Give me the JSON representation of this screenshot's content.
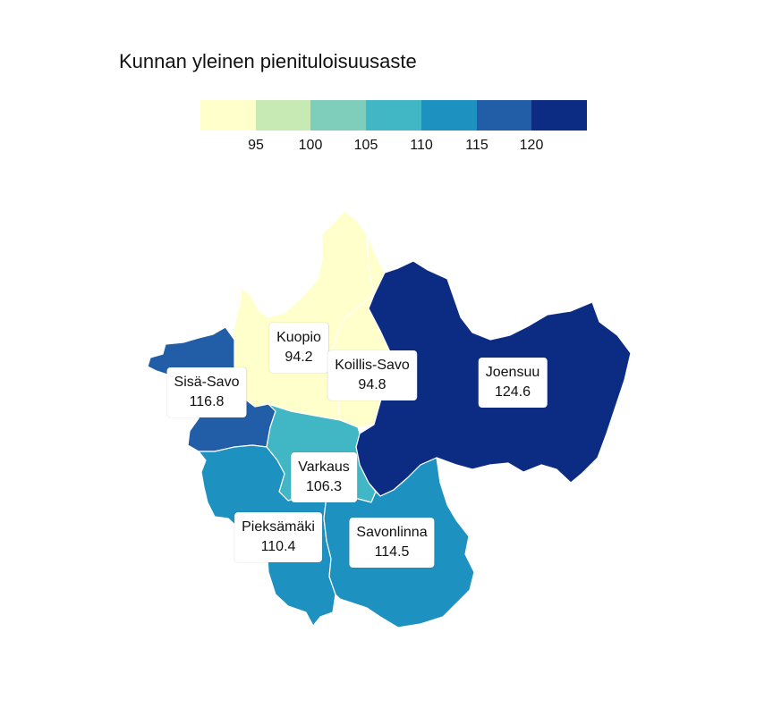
{
  "title": "Kunnan yleinen pienituloisuusaste",
  "legend": {
    "colors": [
      "#ffffcc",
      "#c7e9b4",
      "#7fcdbb",
      "#41b6c4",
      "#1d91c0",
      "#225ea8",
      "#0c2c84"
    ],
    "ticks": [
      "95",
      "100",
      "105",
      "110",
      "115",
      "120"
    ]
  },
  "regions": [
    {
      "name": "Kuopio",
      "value": "94.2",
      "color": "#ffffcc"
    },
    {
      "name": "Koillis-Savo",
      "value": "94.8",
      "color": "#ffffcc"
    },
    {
      "name": "Joensuu",
      "value": "124.6",
      "color": "#0c2c84"
    },
    {
      "name": "Sisä-Savo",
      "value": "116.8",
      "color": "#225ea8"
    },
    {
      "name": "Varkaus",
      "value": "106.3",
      "color": "#41b6c4"
    },
    {
      "name": "Pieksämäki",
      "value": "110.4",
      "color": "#1d91c0"
    },
    {
      "name": "Savonlinna",
      "value": "114.5",
      "color": "#1d91c0"
    }
  ]
}
